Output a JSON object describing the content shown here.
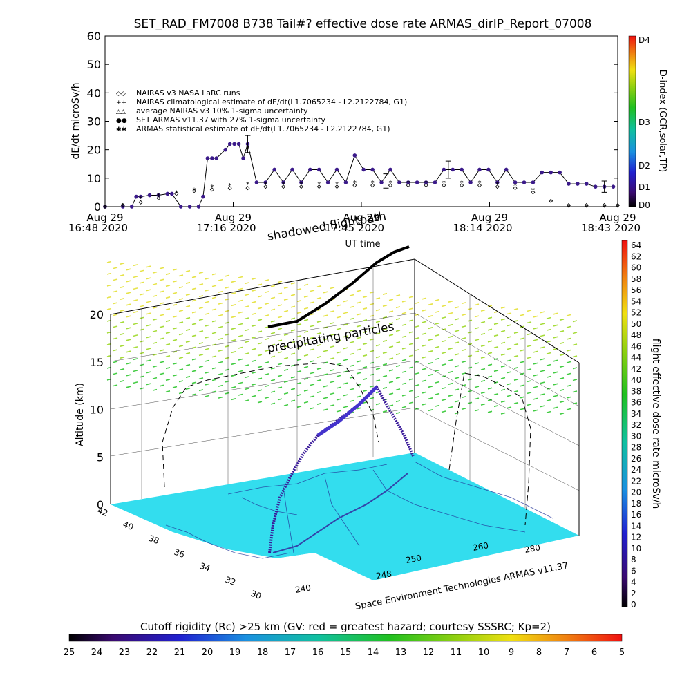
{
  "title": "SET_RAD_FM7008  B738 Tail#? effective dose rate ARMAS_dirIP_Report_07008",
  "top_plot": {
    "ylabel": "dE/dt microSv/h",
    "xlabel": "UT time",
    "yticks": [
      "0",
      "10",
      "20",
      "30",
      "40",
      "50",
      "60"
    ],
    "xticks": [
      {
        "date": "Aug 29",
        "time": "16:48 2020"
      },
      {
        "date": "Aug 29",
        "time": "17:16 2020"
      },
      {
        "date": "Aug 29",
        "time": "17:45 2020"
      },
      {
        "date": "Aug 29",
        "time": "18:14 2020"
      },
      {
        "date": "Aug 29",
        "time": "18:43 2020"
      }
    ],
    "legend": [
      {
        "symbol": "◇◇",
        "text": "NAIRAS v3 NASA LaRC runs"
      },
      {
        "symbol": "++",
        "text": "NAIRAS climatological estimate of dE/dt(L1.7065234 - L2.2122784, G1)"
      },
      {
        "symbol": "△△",
        "text": "average NAIRAS v3 10% 1-sigma uncertainty"
      },
      {
        "symbol": "●●",
        "text": "SET ARMAS v11.37 with 27% 1-sigma uncertainty"
      },
      {
        "symbol": "✱✱",
        "text": "ARMAS statistical estimate of dE/dt(L1.7065234 - L2.2122784, G1)"
      }
    ],
    "dindex_label": "D-index (GCR,solar,TP)",
    "dindex_ticks": [
      "D4",
      "D3",
      "D2",
      "D1",
      "D0"
    ]
  },
  "chart_data": [
    {
      "type": "line",
      "title": "SET_RAD_FM7008  B738 Tail#? effective dose rate ARMAS_dirIP_Report_07008",
      "xlabel": "UT time",
      "ylabel": "dE/dt microSv/h",
      "ylim": [
        0,
        60
      ],
      "xlim": [
        "16:48",
        "18:43"
      ],
      "series": [
        {
          "name": "SET ARMAS v11.37 with 27% 1-sigma uncertainty",
          "color": "#3b1a8a",
          "x": [
            "16:48",
            "16:52",
            "16:54",
            "16:55",
            "16:56",
            "16:58",
            "17:00",
            "17:02",
            "17:03",
            "17:05",
            "17:07",
            "17:09",
            "17:10",
            "17:11",
            "17:12",
            "17:13",
            "17:15",
            "17:16",
            "17:17",
            "17:18",
            "17:19",
            "17:20",
            "17:22",
            "17:24",
            "17:26",
            "17:28",
            "17:30",
            "17:32",
            "17:34",
            "17:36",
            "17:38",
            "17:40",
            "17:42",
            "17:44",
            "17:46",
            "17:48",
            "17:50",
            "17:52",
            "17:54",
            "17:56",
            "17:58",
            "18:00",
            "18:02",
            "18:04",
            "18:06",
            "18:08",
            "18:10",
            "18:12",
            "18:14",
            "18:16",
            "18:18",
            "18:20",
            "18:22",
            "18:24",
            "18:26",
            "18:28",
            "18:30",
            "18:32",
            "18:34",
            "18:36",
            "18:38",
            "18:40",
            "18:42"
          ],
          "y": [
            0,
            0,
            0,
            3.5,
            3.5,
            4,
            4,
            4.5,
            4.5,
            0,
            0,
            0,
            3.5,
            17,
            17,
            17,
            20,
            22,
            22,
            22,
            17,
            22,
            8.5,
            8.5,
            13,
            8.5,
            13,
            8.5,
            13,
            13,
            8.5,
            13,
            8.5,
            18,
            13,
            13,
            8.5,
            13,
            8.5,
            8.5,
            8.5,
            8.5,
            8.5,
            13,
            13,
            13,
            8.5,
            13,
            13,
            8.5,
            13,
            8.5,
            8.5,
            8.5,
            12,
            12,
            12,
            8,
            8,
            8,
            7,
            7,
            7
          ]
        },
        {
          "name": "NAIRAS v3 NASA LaRC runs",
          "color": "#000000",
          "x": [
            "16:48",
            "16:52",
            "16:56",
            "17:00",
            "17:04",
            "17:08",
            "17:12",
            "17:16",
            "17:20",
            "17:24",
            "17:28",
            "17:32",
            "17:36",
            "17:40",
            "17:44",
            "17:48",
            "17:52",
            "17:56",
            "18:00",
            "18:04",
            "18:08",
            "18:12",
            "18:16",
            "18:20",
            "18:24",
            "18:28",
            "18:32",
            "18:36",
            "18:40",
            "18:43"
          ],
          "y": [
            0,
            0.5,
            1.5,
            3,
            4.5,
            5.5,
            6,
            6.5,
            6.5,
            7,
            7,
            7,
            7,
            7,
            7.5,
            7.5,
            7.5,
            7.5,
            7.5,
            7.5,
            7.5,
            7.5,
            7,
            6.5,
            5,
            2,
            0.5,
            0.5,
            0.5,
            0.5
          ]
        },
        {
          "name": "ARMAS statistical estimate of dE/dt(L1.7065234 - L2.2122784, G1)",
          "color": "#000000",
          "x": [
            "16:48",
            "16:52",
            "16:56",
            "17:00",
            "17:04",
            "17:08",
            "17:12",
            "17:16",
            "17:20",
            "17:24",
            "17:28",
            "17:32",
            "17:36",
            "17:40",
            "17:44",
            "17:48",
            "17:52",
            "17:56",
            "18:00",
            "18:04",
            "18:08",
            "18:12",
            "18:16",
            "18:20",
            "18:24",
            "18:28",
            "18:32",
            "18:36",
            "18:40",
            "18:43"
          ],
          "y": [
            0,
            0.5,
            3,
            4,
            5,
            6,
            7,
            7.5,
            8,
            8,
            8,
            8,
            8,
            8,
            8.5,
            8.5,
            8.5,
            8.5,
            8.5,
            8.5,
            8.5,
            8.5,
            8,
            7.5,
            6,
            2,
            0,
            0,
            0,
            0
          ]
        }
      ]
    },
    {
      "type": "scatter",
      "title": "",
      "zlabel": "Altitude (km)",
      "zlim": [
        0,
        20
      ],
      "zticks": [
        "0",
        "5",
        "10",
        "15",
        "20"
      ],
      "lat_ticks": [
        "42",
        "40",
        "38",
        "36",
        "34",
        "32",
        "30"
      ],
      "lon_ticks": [
        "240",
        "248",
        "250",
        "260",
        "280"
      ]
    }
  ],
  "annotations": {
    "shadowed": "shadowed flightpath",
    "precipitating": "precipitating particles",
    "credit": "Space Environment Technologies ARMAS v11.37"
  },
  "dose_colorbar": {
    "label": "flight effective dose rate microSv/h",
    "ticks": [
      "64",
      "62",
      "60",
      "58",
      "56",
      "54",
      "52",
      "50",
      "48",
      "46",
      "44",
      "42",
      "40",
      "38",
      "36",
      "34",
      "32",
      "30",
      "28",
      "26",
      "24",
      "22",
      "20",
      "18",
      "16",
      "14",
      "12",
      "10",
      "8",
      "6",
      "4",
      "2",
      "0"
    ]
  },
  "rc_colorbar": {
    "title": "Cutoff rigidity (Rc) >25 km (GV: red = greatest hazard; courtesy SSSRC; Kp=2)",
    "ticks": [
      "25",
      "24",
      "23",
      "22",
      "21",
      "20",
      "19",
      "18",
      "17",
      "16",
      "15",
      "14",
      "13",
      "12",
      "11",
      "10",
      "9",
      "8",
      "7",
      "6",
      "5"
    ]
  }
}
